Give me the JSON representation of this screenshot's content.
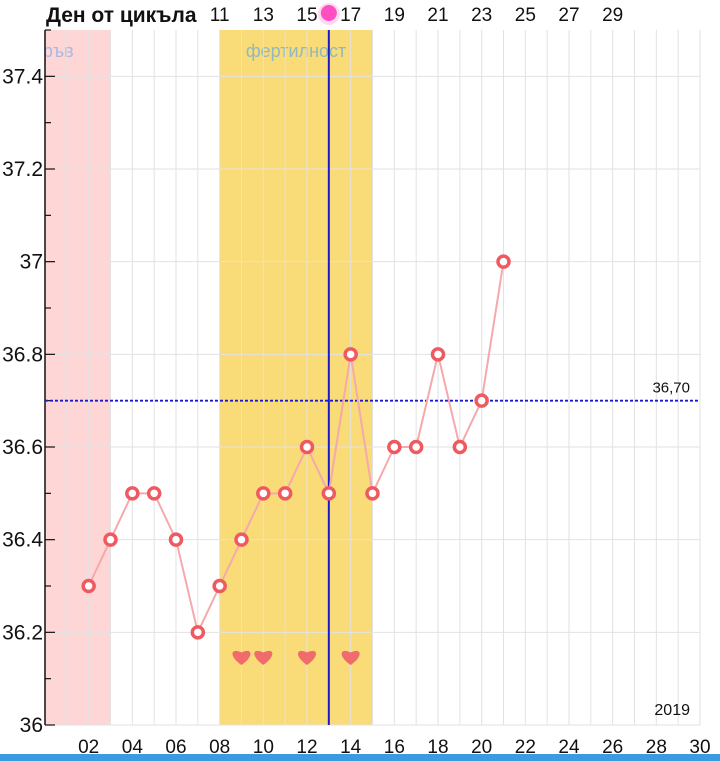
{
  "header": {
    "title": "Ден от цикъла"
  },
  "colors": {
    "period_band": "#ffd6d6",
    "fertile_band": "#f9dc78",
    "line": "#f5a9ad",
    "marker": "#ee5a60",
    "ovulation_line": "#1a1acc",
    "coverline": "#1a1acc",
    "heart": "#f06b6b",
    "pink_dot": "#ff4fc0",
    "bottom_bar": "#3a9be0"
  },
  "chart_data": {
    "type": "line",
    "x": [
      2,
      3,
      4,
      5,
      6,
      7,
      8,
      9,
      10,
      11,
      12,
      13,
      14,
      15,
      16,
      17,
      18,
      19,
      20,
      21
    ],
    "values": [
      36.3,
      36.4,
      36.5,
      36.5,
      36.4,
      36.2,
      36.3,
      36.4,
      36.5,
      36.5,
      36.6,
      36.5,
      36.8,
      36.5,
      36.6,
      36.6,
      36.8,
      36.6,
      36.7,
      37.0
    ],
    "xlim": [
      0,
      30
    ],
    "ylim": [
      36,
      37.5
    ],
    "x_ticks": [
      "02",
      "04",
      "06",
      "08",
      "10",
      "12",
      "14",
      "16",
      "18",
      "20",
      "22",
      "24",
      "26",
      "28",
      "30"
    ],
    "cycle_day_ticks": [
      "11",
      "13",
      "15",
      "17",
      "19",
      "21",
      "23",
      "25",
      "27",
      "29"
    ],
    "y_ticks": [
      "36",
      "36.2",
      "36.4",
      "36.6",
      "36.8",
      "37",
      "37.2",
      "37.4"
    ],
    "bands": [
      {
        "label": "кръв",
        "from": 0,
        "to": 3,
        "kind": "period"
      },
      {
        "label": "фертилност",
        "from": 8,
        "to": 15,
        "kind": "fertile"
      }
    ],
    "ovulation_x": 13,
    "coverline": {
      "value": 36.7,
      "label": "36,70"
    },
    "hearts_x": [
      9,
      10,
      12,
      14
    ],
    "year_label": "2019",
    "grid": true
  }
}
